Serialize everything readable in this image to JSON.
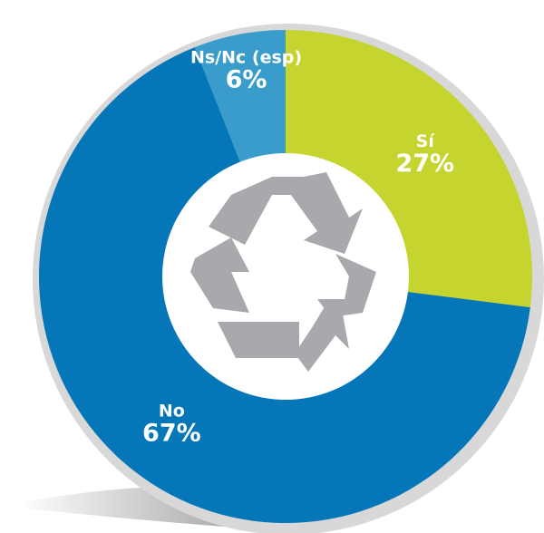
{
  "chart_data": {
    "type": "pie",
    "categories": [
      "Sí",
      "No",
      "Ns/Nc (esp)"
    ],
    "values": [
      27,
      67,
      6
    ],
    "value_labels": [
      "27%",
      "67%",
      "6%"
    ],
    "colors": [
      "#c5d42e",
      "#0577b8",
      "#3a9cca"
    ]
  }
}
